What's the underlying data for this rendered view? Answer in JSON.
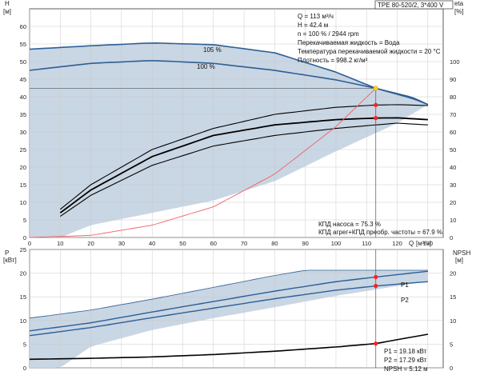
{
  "colors": {
    "band": "#c9d6e4",
    "band_light": "#e6eef6",
    "curve_blue": "#2d5f96",
    "curve_black": "#000000",
    "efficiency_red": "#f06060",
    "op_point": "#ff2020",
    "op_point_top": "#ffd21f"
  },
  "header": {
    "pump_label": "TPE 80-520/2, 3*400 V"
  },
  "info": {
    "q": "Q = 113 м³/ч",
    "h": "H = 42.4 м",
    "n": "n = 100 % / 2944 rpm",
    "liquid": "Перекачиваемая жидкость = Вода",
    "temp": "Температура перекачиваемой жидкости = 20 °C",
    "density": "Плотность = 998.2 кг/м³"
  },
  "eff_info": {
    "pump": "КПД насоса = 75.3 %",
    "total": "КПД агрег+КПД преобр. частоты = 67.9 %"
  },
  "power_info": {
    "p1": "P1 = 19.18 кВт",
    "p2": "P2 = 17.29 кВт",
    "npsh": "NPSH = 5.12 м"
  },
  "labels": {
    "h_axis": "H",
    "h_unit": "[м]",
    "eta_axis": "eta",
    "eta_unit": "[%]",
    "q_axis": "Q",
    "q_unit": "[м³/ч]",
    "p_axis": "P",
    "p_unit": "[кВт]",
    "npsh_axis": "NPSH",
    "npsh_unit": "[м]",
    "curve_105": "105 %",
    "curve_100": "100 %",
    "curve_p1": "P1",
    "curve_p2": "P2"
  },
  "chart_data": [
    {
      "type": "line",
      "title": "",
      "xlabel": "Q [м³/ч]",
      "ylabel": "H [м]",
      "y2label": "eta [%]",
      "xlim": [
        0,
        135
      ],
      "ylim": [
        0,
        65
      ],
      "y2lim": [
        0,
        130
      ],
      "x_ticks": [
        0,
        10,
        20,
        30,
        40,
        50,
        60,
        70,
        80,
        90,
        100,
        110,
        120,
        130
      ],
      "y_ticks": [
        0,
        5,
        10,
        15,
        20,
        25,
        30,
        35,
        40,
        45,
        50,
        55,
        60
      ],
      "y2_ticks": [
        0,
        10,
        20,
        30,
        40,
        50,
        60,
        70,
        80,
        90,
        100
      ],
      "grid": true,
      "operating_point": {
        "q": 113,
        "h": 42.4,
        "eta_pump": 75.3,
        "eta_total": 67.9
      },
      "series": [
        {
          "name": "105 %",
          "axis": "H",
          "x": [
            0,
            20,
            40,
            60,
            80,
            100,
            113,
            125,
            130
          ],
          "y": [
            53.5,
            54.5,
            55.3,
            54.8,
            52.5,
            47.0,
            42.4,
            39.5,
            37.8
          ]
        },
        {
          "name": "100 %",
          "axis": "H",
          "x": [
            0,
            20,
            40,
            60,
            80,
            100,
            113,
            125,
            130
          ],
          "y": [
            47.5,
            49.5,
            50.3,
            49.5,
            47.5,
            44.8,
            42.4,
            39.8,
            37.8
          ]
        },
        {
          "axis": "eta",
          "x": [
            10,
            20,
            40,
            60,
            80,
            100,
            113,
            120,
            130
          ],
          "y": [
            16,
            30,
            50,
            62,
            70,
            74,
            75.3,
            75.5,
            75
          ]
        },
        {
          "axis": "eta",
          "x": [
            10,
            20,
            40,
            60,
            80,
            100,
            113,
            120,
            130
          ],
          "y": [
            14,
            27,
            46,
            58,
            64,
            67,
            67.9,
            68,
            67
          ]
        },
        {
          "axis": "eta",
          "x": [
            10,
            20,
            40,
            60,
            80,
            100,
            113,
            120,
            130
          ],
          "y": [
            12,
            24,
            41,
            52,
            58,
            62,
            64,
            65,
            64
          ]
        },
        {
          "axis": "H",
          "x": [
            0,
            20,
            40,
            60,
            80,
            100,
            113
          ],
          "y": [
            0,
            0.6,
            3.5,
            8.7,
            18.0,
            31.5,
            42.4
          ]
        }
      ]
    },
    {
      "type": "line",
      "title": "",
      "xlabel": "Q [м³/ч]",
      "ylabel": "P [кВт]",
      "y2label": "NPSH [м]",
      "xlim": [
        0,
        135
      ],
      "ylim": [
        0,
        25
      ],
      "y2lim": [
        0,
        25
      ],
      "y_ticks": [
        0,
        5,
        10,
        15,
        20,
        25
      ],
      "y2_ticks": [
        0,
        5,
        10,
        15,
        20
      ],
      "grid": true,
      "series": [
        {
          "name": "P1",
          "axis": "P",
          "x": [
            0,
            20,
            40,
            60,
            80,
            100,
            113,
            130
          ],
          "y": [
            7.8,
            9.5,
            11.8,
            14.0,
            16.2,
            18.2,
            19.18,
            20.4
          ]
        },
        {
          "name": "P2",
          "axis": "P",
          "x": [
            0,
            20,
            40,
            60,
            80,
            100,
            113,
            130
          ],
          "y": [
            6.8,
            8.5,
            10.6,
            12.6,
            14.6,
            16.4,
            17.29,
            18.2
          ]
        },
        {
          "axis": "NPSH",
          "x": [
            0,
            20,
            40,
            60,
            80,
            100,
            113,
            130
          ],
          "y": [
            1.8,
            2.0,
            2.3,
            2.8,
            3.5,
            4.4,
            5.12,
            7.1
          ]
        }
      ]
    }
  ]
}
